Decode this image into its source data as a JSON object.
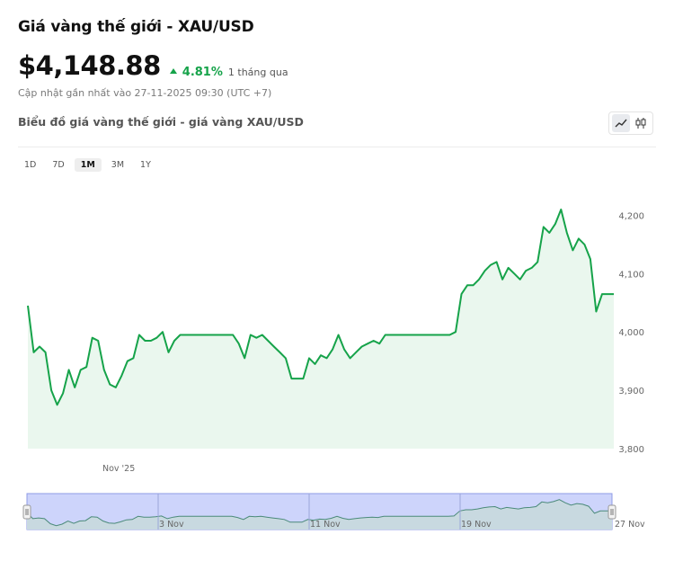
{
  "header": {
    "title": "Giá vàng thế giới - XAU/USD",
    "price": "$4,148.88",
    "change": "4.81%",
    "period": "1 tháng qua",
    "updated": "Cập nhật gần nhất vào 27-11-2025 09:30 (UTC +7)",
    "subtitle": "Biểu đồ giá vàng thế giới - giá vàng XAU/USD"
  },
  "chart_type_toggle": [
    {
      "icon": "line-chart-icon",
      "active": true
    },
    {
      "icon": "candlestick-icon",
      "active": false
    }
  ],
  "ranges": [
    {
      "label": "1D",
      "active": false
    },
    {
      "label": "7D",
      "active": false
    },
    {
      "label": "1M",
      "active": true
    },
    {
      "label": "3M",
      "active": false
    },
    {
      "label": "1Y",
      "active": false
    }
  ],
  "colors": {
    "line": "#16a34a",
    "fill": "#eaf7ee",
    "navigator_fill": "#cdd4fb",
    "navigator_border": "#8f9be6"
  },
  "chart_data": {
    "type": "area",
    "y_axis_ticks": [
      "3,800",
      "3,900",
      "4,000",
      "4,100",
      "4,200"
    ],
    "ylim": [
      3800,
      4230
    ],
    "x_label": "Nov '25",
    "xlim": [
      0,
      100
    ],
    "series": [
      {
        "values": [
          [
            0,
            4045
          ],
          [
            1,
            3965
          ],
          [
            2,
            3975
          ],
          [
            3,
            3965
          ],
          [
            4,
            3900
          ],
          [
            5,
            3875
          ],
          [
            6,
            3895
          ],
          [
            7,
            3935
          ],
          [
            8,
            3905
          ],
          [
            9,
            3935
          ],
          [
            10,
            3940
          ],
          [
            11,
            3990
          ],
          [
            12,
            3985
          ],
          [
            13,
            3935
          ],
          [
            14,
            3910
          ],
          [
            15,
            3905
          ],
          [
            16,
            3925
          ],
          [
            17,
            3950
          ],
          [
            18,
            3955
          ],
          [
            19,
            3995
          ],
          [
            20,
            3985
          ],
          [
            21,
            3985
          ],
          [
            22,
            3990
          ],
          [
            23,
            4000
          ],
          [
            24,
            3965
          ],
          [
            25,
            3985
          ],
          [
            26,
            3995
          ],
          [
            27,
            3995
          ],
          [
            28,
            3995
          ],
          [
            29,
            3995
          ],
          [
            30,
            3995
          ],
          [
            31,
            3995
          ],
          [
            32,
            3995
          ],
          [
            33,
            3995
          ],
          [
            34,
            3995
          ],
          [
            35,
            3995
          ],
          [
            36,
            3980
          ],
          [
            37,
            3955
          ],
          [
            38,
            3995
          ],
          [
            39,
            3990
          ],
          [
            40,
            3995
          ],
          [
            41,
            3985
          ],
          [
            42,
            3975
          ],
          [
            43,
            3965
          ],
          [
            44,
            3955
          ],
          [
            45,
            3920
          ],
          [
            46,
            3920
          ],
          [
            47,
            3920
          ],
          [
            48,
            3955
          ],
          [
            49,
            3945
          ],
          [
            50,
            3960
          ],
          [
            51,
            3955
          ],
          [
            52,
            3970
          ],
          [
            53,
            3995
          ],
          [
            54,
            3970
          ],
          [
            55,
            3955
          ],
          [
            56,
            3965
          ],
          [
            57,
            3975
          ],
          [
            58,
            3980
          ],
          [
            59,
            3985
          ],
          [
            60,
            3980
          ],
          [
            61,
            3995
          ],
          [
            62,
            3995
          ],
          [
            63,
            3995
          ],
          [
            64,
            3995
          ],
          [
            65,
            3995
          ],
          [
            66,
            3995
          ],
          [
            67,
            3995
          ],
          [
            68,
            3995
          ],
          [
            69,
            3995
          ],
          [
            70,
            3995
          ],
          [
            71,
            3995
          ],
          [
            72,
            3995
          ],
          [
            73,
            4000
          ],
          [
            74,
            4065
          ],
          [
            75,
            4080
          ],
          [
            76,
            4080
          ],
          [
            77,
            4090
          ],
          [
            78,
            4105
          ],
          [
            79,
            4115
          ],
          [
            80,
            4120
          ],
          [
            81,
            4090
          ],
          [
            82,
            4110
          ],
          [
            83,
            4100
          ],
          [
            84,
            4090
          ],
          [
            85,
            4105
          ],
          [
            86,
            4110
          ],
          [
            87,
            4120
          ],
          [
            88,
            4180
          ],
          [
            89,
            4170
          ],
          [
            90,
            4185
          ],
          [
            91,
            4210
          ],
          [
            92,
            4170
          ],
          [
            93,
            4140
          ],
          [
            94,
            4160
          ],
          [
            95,
            4150
          ],
          [
            96,
            4125
          ],
          [
            97,
            4035
          ],
          [
            98,
            4065
          ],
          [
            99,
            4065
          ],
          [
            100,
            4065
          ]
        ]
      }
    ]
  },
  "navigator": {
    "x_labels": [
      "3 Nov",
      "11 Nov",
      "19 Nov",
      "27 Nov"
    ]
  }
}
